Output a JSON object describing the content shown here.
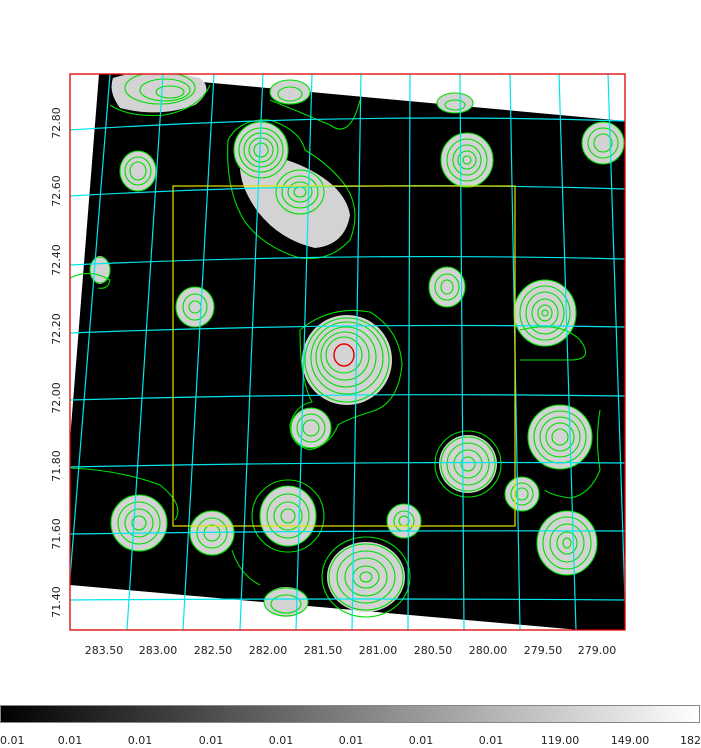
{
  "x_ticks": [
    "283.50",
    "283.00",
    "282.50",
    "282.00",
    "281.50",
    "281.00",
    "280.50",
    "280.00",
    "279.50",
    "279.00"
  ],
  "y_ticks": [
    "72.80",
    "72.60",
    "72.40",
    "72.20",
    "72.00",
    "71.80",
    "71.60",
    "71.40"
  ],
  "colorbar_ticks": [
    "0.01",
    "0.01",
    "0.01",
    "0.01",
    "0.01",
    "0.01",
    "0.01",
    "0.01",
    "119.00",
    "149.00",
    "182"
  ],
  "colors": {
    "frame": "#e00000",
    "grid": "#00e5ee",
    "contour": "#00dd00",
    "source_marker": "#e00000",
    "region": "#e6e600",
    "sky_background": "#000000",
    "emission": "#d0d0d0"
  }
}
